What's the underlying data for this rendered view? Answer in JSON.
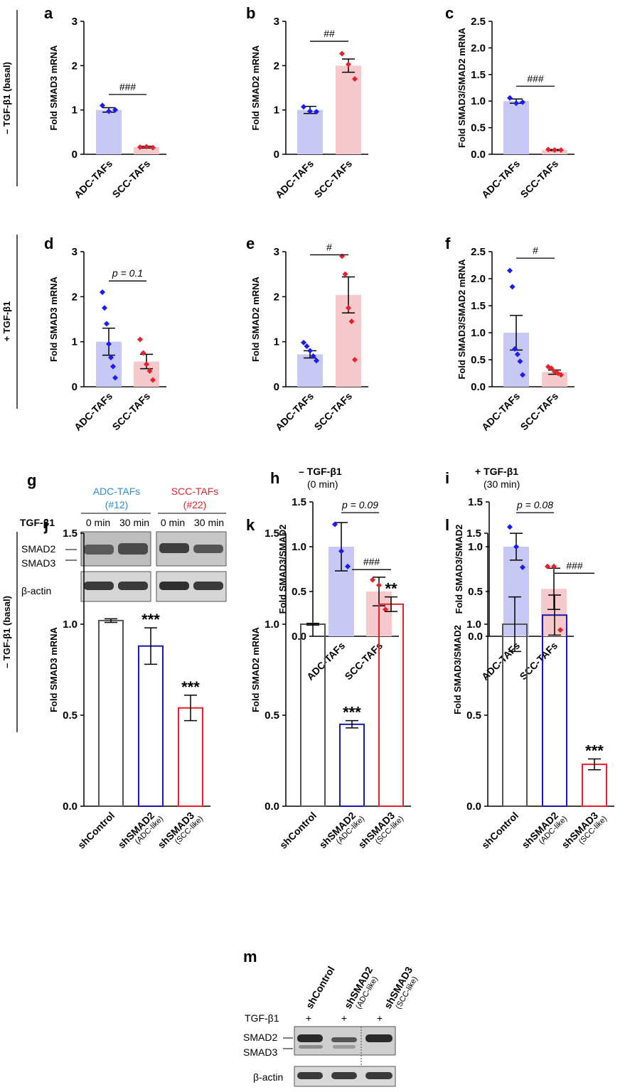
{
  "colors": {
    "blue": "#1a1aff",
    "red": "#e8202a",
    "blue_fill": "#c8c8f4",
    "red_fill": "#f6c9cc",
    "adc_label": "#2a8fd0",
    "scc_label": "#e8202a"
  },
  "row_labels": {
    "row1": "– TGF-β1 (basal)",
    "row2": "+ TGF-β1",
    "row3": "– TGF-β1 (basal)"
  },
  "chart_data": [
    {
      "panel": "a",
      "type": "bar",
      "categories": [
        "ADC-TAFs",
        "SCC-TAFs"
      ],
      "values": [
        1.0,
        0.16
      ],
      "errors": [
        0.05,
        0.02
      ],
      "ylim": [
        0,
        3
      ],
      "yticks": [
        "0",
        "1",
        "2",
        "3"
      ],
      "ylabel": "Fold SMAD3 mRNA",
      "points": [
        [
          1.1,
          0.97,
          1.0
        ],
        [
          0.16,
          0.17,
          0.15
        ]
      ],
      "annotations": [
        {
          "text": "###",
          "between": [
            0,
            1
          ],
          "y": 1.35
        }
      ]
    },
    {
      "panel": "b",
      "type": "bar",
      "categories": [
        "ADC-TAFs",
        "SCC-TAFs"
      ],
      "values": [
        1.0,
        2.0
      ],
      "errors": [
        0.08,
        0.15
      ],
      "ylim": [
        0,
        3
      ],
      "yticks": [
        "0",
        "1",
        "2",
        "3"
      ],
      "ylabel": "Fold SMAD2 mRNA",
      "points": [
        [
          1.07,
          0.97,
          0.96
        ],
        [
          2.27,
          2.03,
          1.7
        ]
      ],
      "annotations": [
        {
          "text": "##",
          "between": [
            0,
            1
          ],
          "y": 2.55
        }
      ]
    },
    {
      "panel": "c",
      "type": "bar",
      "categories": [
        "ADC-TAFs",
        "SCC-TAFs"
      ],
      "values": [
        1.0,
        0.08
      ],
      "errors": [
        0.04,
        0.01
      ],
      "ylim": [
        0,
        2.5
      ],
      "yticks": [
        "0.0",
        "0.5",
        "1.0",
        "1.5",
        "2.0",
        "2.5"
      ],
      "ylabel": "Fold SMAD3/SMAD2 mRNA",
      "points": [
        [
          1.06,
          0.96,
          0.98
        ],
        [
          0.09,
          0.08,
          0.08
        ]
      ],
      "annotations": [
        {
          "text": "###",
          "between": [
            0,
            1
          ],
          "y": 1.28
        }
      ]
    },
    {
      "panel": "d",
      "type": "bar",
      "categories": [
        "ADC-TAFs",
        "SCC-TAFs"
      ],
      "values": [
        1.0,
        0.56
      ],
      "errors": [
        0.3,
        0.16
      ],
      "ylim": [
        0,
        3
      ],
      "yticks": [
        "0",
        "1",
        "2",
        "3"
      ],
      "ylabel": "Fold SMAD3 mRNA",
      "points": [
        [
          2.1,
          1.75,
          1.4,
          0.95,
          0.65,
          0.45,
          0.2
        ],
        [
          1.05,
          0.75,
          0.5,
          0.35,
          0.15
        ]
      ],
      "annotations": [
        {
          "text": "p = 0.1",
          "between": [
            0,
            1
          ],
          "y": 2.35
        }
      ]
    },
    {
      "panel": "e",
      "type": "bar",
      "categories": [
        "ADC-TAFs",
        "SCC-TAFs"
      ],
      "values": [
        0.72,
        2.04
      ],
      "errors": [
        0.08,
        0.4
      ],
      "ylim": [
        0,
        3
      ],
      "yticks": [
        "0",
        "1",
        "2",
        "3"
      ],
      "ylabel": "Fold SMAD2 mRNA",
      "points": [
        [
          0.98,
          0.9,
          0.8,
          0.68,
          0.58
        ],
        [
          2.9,
          2.5,
          1.75,
          1.45,
          0.6
        ]
      ],
      "annotations": [
        {
          "text": "#",
          "between": [
            0,
            1
          ],
          "y": 2.93
        }
      ]
    },
    {
      "panel": "f",
      "type": "bar",
      "categories": [
        "ADC-TAFs",
        "SCC-TAFs"
      ],
      "values": [
        1.0,
        0.27
      ],
      "errors": [
        0.32,
        0.04
      ],
      "ylim": [
        0,
        2.5
      ],
      "yticks": [
        "0.0",
        "0.5",
        "1.0",
        "1.5",
        "2.0",
        "2.5"
      ],
      "ylabel": "Fold SMAD3/SMAD2 mRNA",
      "points": [
        [
          2.15,
          1.85,
          0.7,
          0.6,
          0.47,
          0.22
        ],
        [
          0.37,
          0.34,
          0.28,
          0.25,
          0.22
        ]
      ],
      "annotations": [
        {
          "text": "#",
          "between": [
            0,
            1
          ],
          "y": 2.38
        }
      ]
    },
    {
      "panel": "h",
      "type": "bar",
      "categories": [
        "ADC-TAFs",
        "SCC-TAFs"
      ],
      "values": [
        1.0,
        0.5
      ],
      "errors": [
        0.27,
        0.16
      ],
      "ylim": [
        0,
        1.5
      ],
      "yticks": [
        "0.0",
        "0.5",
        "1.0",
        "1.5"
      ],
      "ylabel": "Fold SMAD3/SMAD2",
      "title": "– TGF-β1",
      "subtitle": "(0 min)",
      "points": [
        [
          1.25,
          0.95,
          0.78
        ],
        [
          0.63,
          0.57,
          0.3
        ]
      ],
      "annotations": [
        {
          "text": "p = 0.09",
          "between": [
            0,
            1
          ],
          "y": 1.38
        }
      ]
    },
    {
      "panel": "i",
      "type": "bar",
      "categories": [
        "ADC-TAFs",
        "SCC-TAFs"
      ],
      "values": [
        1.0,
        0.53
      ],
      "errors": [
        0.15,
        0.23
      ],
      "ylim": [
        0,
        1.5
      ],
      "yticks": [
        "0.0",
        "0.5",
        "1.0",
        "1.5"
      ],
      "ylabel": "Fold SMAD3/SMAD2",
      "title": "+ TGF-β1",
      "subtitle": "(30 min)",
      "points": [
        [
          1.22,
          1.0,
          0.77
        ],
        [
          0.78,
          0.78,
          0.07
        ]
      ],
      "annotations": [
        {
          "text": "p = 0.08",
          "between": [
            0,
            1
          ],
          "y": 1.38
        }
      ]
    },
    {
      "panel": "j",
      "type": "bar",
      "categories": [
        "shControl",
        "shSMAD2",
        "shSMAD3"
      ],
      "sublabels": [
        "",
        "(ADC-like)",
        "(SCC-like)"
      ],
      "values": [
        1.02,
        0.88,
        0.54
      ],
      "errors": [
        0.01,
        0.1,
        0.07
      ],
      "ylim": [
        0,
        1.5
      ],
      "yticks": [
        "0.0",
        "0.5",
        "1.0",
        "1.5"
      ],
      "ylabel": "Fold SMAD3 mRNA",
      "stars": [
        "",
        "***",
        "***"
      ],
      "annotations": []
    },
    {
      "panel": "k",
      "type": "bar",
      "categories": [
        "shControl",
        "shSMAD2",
        "shSMAD3"
      ],
      "sublabels": [
        "",
        "(ADC-like)",
        "(SCC-like)"
      ],
      "values": [
        1.0,
        0.45,
        1.11
      ],
      "errors": [
        0.005,
        0.02,
        0.04
      ],
      "ylim": [
        0,
        1.5
      ],
      "yticks": [
        "0.0",
        "0.5",
        "1.0",
        "1.5"
      ],
      "ylabel": "Fold SMAD2 mRNA",
      "stars": [
        "",
        "***",
        "**"
      ],
      "annotations": [
        {
          "text": "###",
          "between": [
            1,
            2
          ],
          "y": 1.3
        }
      ]
    },
    {
      "panel": "l",
      "type": "bar",
      "categories": [
        "shControl",
        "shSMAD2",
        "shSMAD3"
      ],
      "sublabels": [
        "",
        "(ADC-like)",
        "(SCC-like)"
      ],
      "values": [
        1.0,
        1.05,
        0.23
      ],
      "errors": [
        0.15,
        0.11,
        0.03
      ],
      "ylim": [
        0,
        1.5
      ],
      "yticks": [
        "0.0",
        "0.5",
        "1.0",
        "1.5"
      ],
      "ylabel": "Fold SMAD3/SMAD2",
      "stars": [
        "",
        "",
        "***"
      ],
      "annotations": [
        {
          "text": "###",
          "between": [
            1,
            2
          ],
          "y": 1.28
        }
      ]
    }
  ],
  "blot_g": {
    "panel": "g",
    "group1": "ADC-TAFs",
    "group1_id": "(#12)",
    "group2": "SCC-TAFs",
    "group2_id": "(#22)",
    "row_label": "TGF-β1",
    "times": [
      "0 min",
      "30 min",
      "0 min",
      "30 min"
    ],
    "band1": "SMAD2",
    "band2": "SMAD3",
    "band3": "β-actin"
  },
  "blot_m": {
    "panel": "m",
    "lanes": [
      "shControl",
      "shSMAD2",
      "shSMAD3"
    ],
    "sublanes": [
      "",
      "(ADC-like)",
      "(SCC-like)"
    ],
    "row_label": "TGF-β1",
    "treat": [
      "+",
      "+",
      "+"
    ],
    "band1": "SMAD2",
    "band2": "SMAD3",
    "band3": "β-actin"
  }
}
